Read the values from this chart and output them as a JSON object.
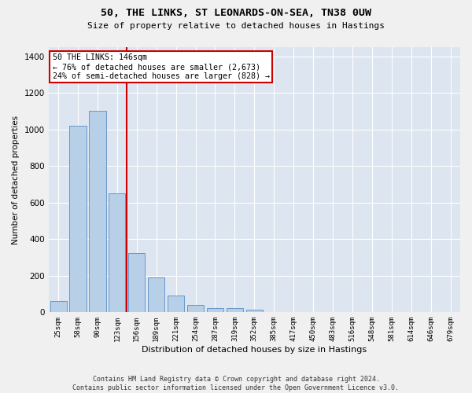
{
  "title": "50, THE LINKS, ST LEONARDS-ON-SEA, TN38 0UW",
  "subtitle": "Size of property relative to detached houses in Hastings",
  "xlabel": "Distribution of detached houses by size in Hastings",
  "ylabel": "Number of detached properties",
  "bar_color": "#b8cfe8",
  "bar_edge_color": "#6699cc",
  "background_color": "#dde5f0",
  "grid_color": "#ffffff",
  "categories": [
    "25sqm",
    "58sqm",
    "90sqm",
    "123sqm",
    "156sqm",
    "189sqm",
    "221sqm",
    "254sqm",
    "287sqm",
    "319sqm",
    "352sqm",
    "385sqm",
    "417sqm",
    "450sqm",
    "483sqm",
    "516sqm",
    "548sqm",
    "581sqm",
    "614sqm",
    "646sqm",
    "679sqm"
  ],
  "values": [
    60,
    1020,
    1100,
    650,
    325,
    190,
    90,
    40,
    25,
    25,
    15,
    0,
    0,
    0,
    0,
    0,
    0,
    0,
    0,
    0,
    0
  ],
  "ylim": [
    0,
    1450
  ],
  "yticks": [
    0,
    200,
    400,
    600,
    800,
    1000,
    1200,
    1400
  ],
  "vline_pos": 3.5,
  "property_label": "50 THE LINKS: 146sqm",
  "annotation_line1": "← 76% of detached houses are smaller (2,673)",
  "annotation_line2": "24% of semi-detached houses are larger (828) →",
  "vline_color": "#cc0000",
  "annotation_box_facecolor": "#ffffff",
  "annotation_box_edgecolor": "#cc0000",
  "footer1": "Contains HM Land Registry data © Crown copyright and database right 2024.",
  "footer2": "Contains public sector information licensed under the Open Government Licence v3.0."
}
